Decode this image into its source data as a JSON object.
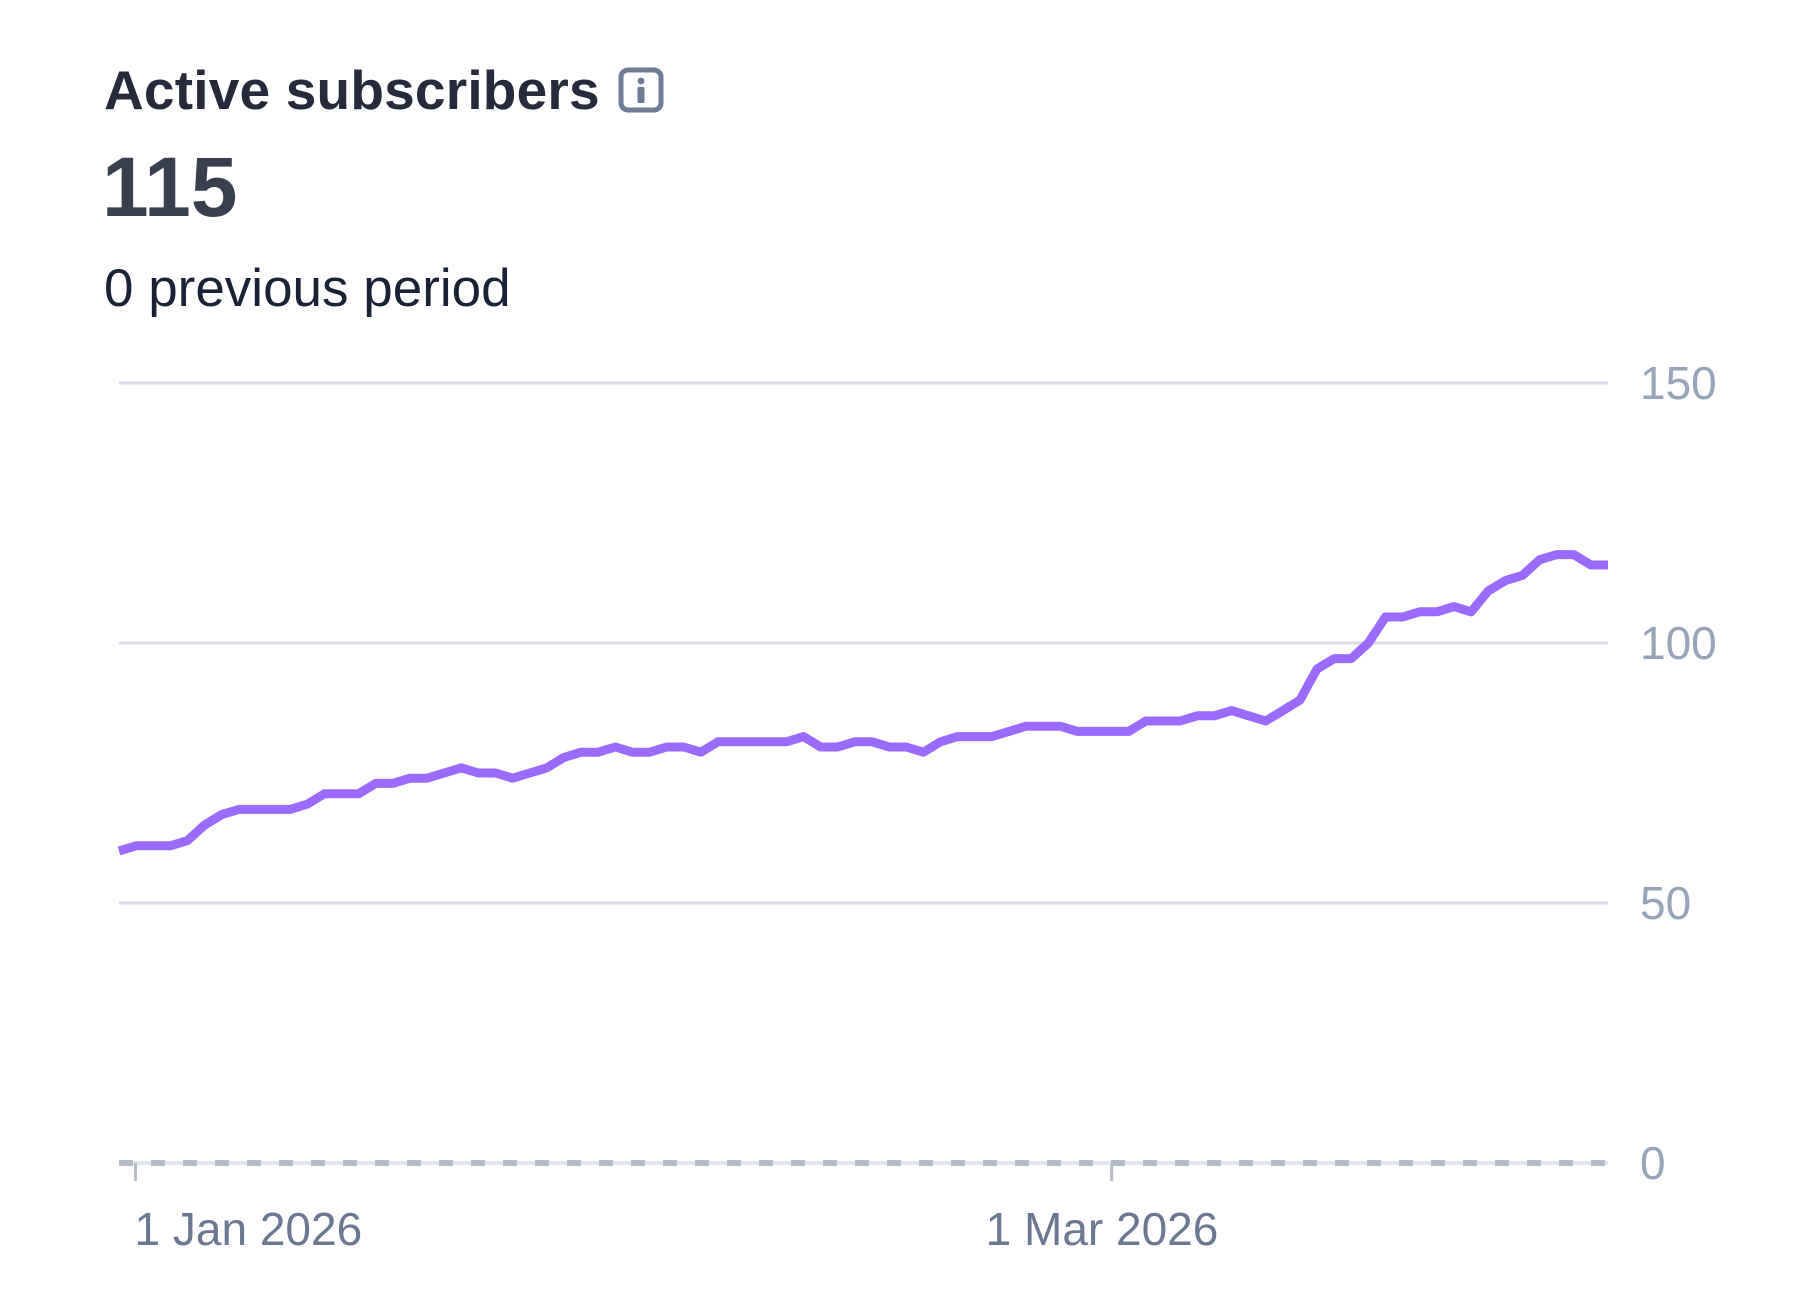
{
  "card": {
    "title": "Active subscribers",
    "info_icon": "info-icon",
    "value": "115",
    "comparison": "0 previous period"
  },
  "colors": {
    "line": "#9b6bff",
    "grid": "#d9dee6",
    "baseline": "#b4bcc8",
    "y_tick_text": "#98a4b8",
    "x_tick_text": "#6b7890"
  },
  "chart_data": {
    "type": "line",
    "title": "Active subscribers",
    "xlabel": "",
    "ylabel": "",
    "x_start": "2025-12-31",
    "x_end": "2026-03-31",
    "x_ticks": [
      {
        "date": "2026-01-01",
        "label": "1 Jan 2026"
      },
      {
        "date": "2026-03-01",
        "label": "1 Mar 2026"
      }
    ],
    "y_ticks": [
      0,
      50,
      100,
      150
    ],
    "ylim": [
      0,
      150
    ],
    "y_axis_position": "right",
    "grid": true,
    "series": [
      {
        "values": [
          60,
          61,
          61,
          61,
          62,
          65,
          67,
          68,
          68,
          68,
          68,
          69,
          71,
          71,
          71,
          73,
          73,
          74,
          74,
          75,
          76,
          75,
          75,
          74,
          75,
          76,
          78,
          79,
          79,
          80,
          79,
          79,
          80,
          80,
          79,
          81,
          81,
          81,
          81,
          81,
          82,
          80,
          80,
          81,
          81,
          80,
          80,
          79,
          81,
          82,
          82,
          82,
          83,
          84,
          84,
          84,
          83,
          83,
          83,
          83,
          85,
          85,
          85,
          86,
          86,
          87,
          86,
          85,
          87,
          89,
          95,
          97,
          97,
          100,
          105,
          105,
          106,
          106,
          107,
          106,
          110,
          112,
          113,
          116,
          117,
          117,
          115,
          115
        ]
      }
    ]
  }
}
